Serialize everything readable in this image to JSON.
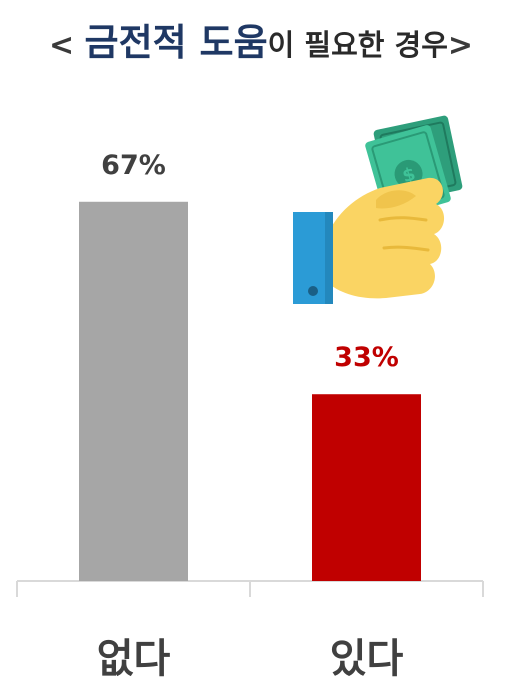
{
  "title": {
    "open": "<",
    "emphasis": "금전적 도움",
    "rest": "이 필요한 경우",
    "close": ">"
  },
  "colors": {
    "title_emphasis": "#1f3864",
    "bar_no": "#a6a6a6",
    "bar_yes": "#c00000",
    "value_no": "#404040",
    "value_yes": "#c00000"
  },
  "illustration": "hand-holding-money-icon",
  "chart_data": {
    "type": "bar",
    "categories": [
      "없다",
      "있다"
    ],
    "values": [
      67,
      33
    ],
    "value_labels": [
      "67%",
      "33%"
    ],
    "ylim": [
      0,
      100
    ],
    "grid": false,
    "legend": "none"
  }
}
